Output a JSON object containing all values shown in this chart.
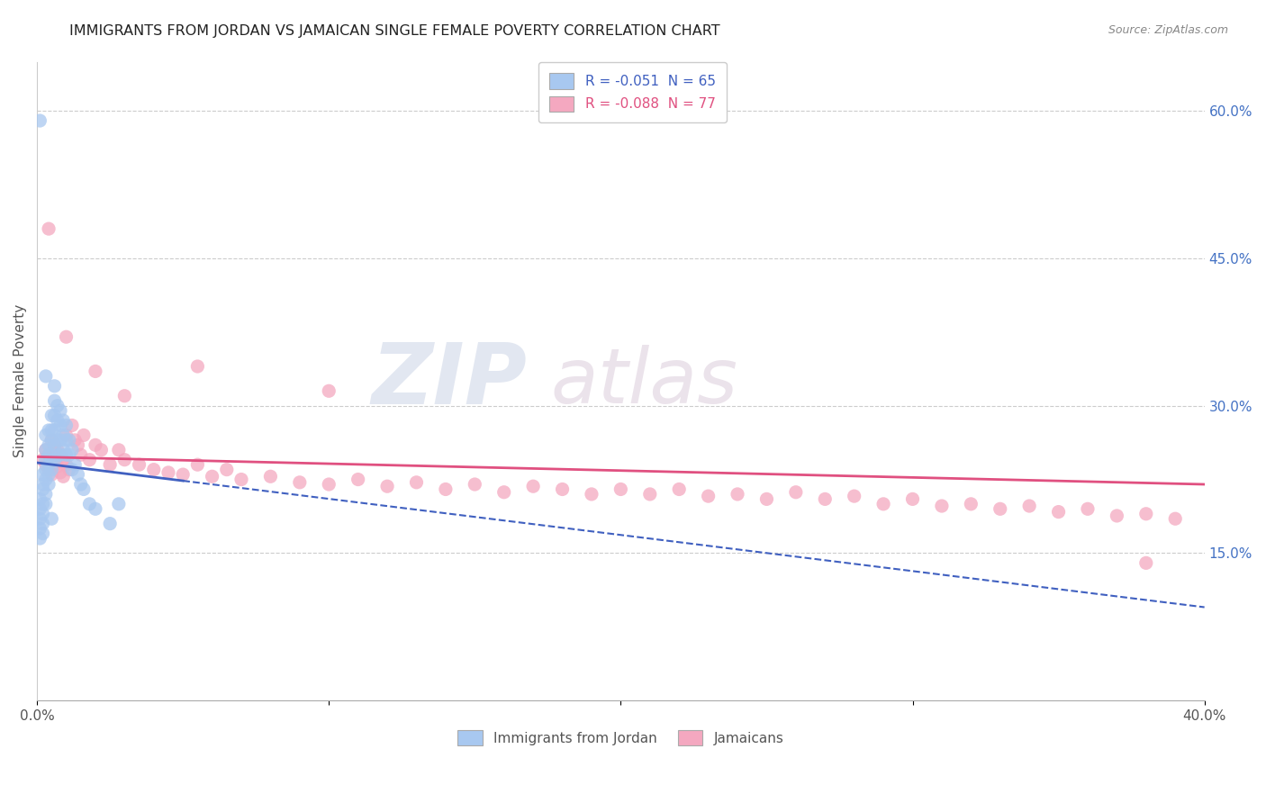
{
  "title": "IMMIGRANTS FROM JORDAN VS JAMAICAN SINGLE FEMALE POVERTY CORRELATION CHART",
  "source": "Source: ZipAtlas.com",
  "ylabel": "Single Female Poverty",
  "right_yticks": [
    "60.0%",
    "45.0%",
    "30.0%",
    "15.0%"
  ],
  "right_ytick_vals": [
    0.6,
    0.45,
    0.3,
    0.15
  ],
  "legend_r1": "R = -0.051  N = 65",
  "legend_r2": "R = -0.088  N = 77",
  "legend_label1": "Immigrants from Jordan",
  "legend_label2": "Jamaicans",
  "color_blue": "#a8c8f0",
  "color_pink": "#f4a8c0",
  "color_blue_line": "#4060c0",
  "color_pink_line": "#e05080",
  "watermark_zip": "ZIP",
  "watermark_atlas": "atlas",
  "xlim": [
    0.0,
    0.4
  ],
  "ylim": [
    0.0,
    0.65
  ],
  "blue_trendline": [
    0.0,
    0.4,
    0.242,
    0.095
  ],
  "pink_trendline": [
    0.0,
    0.4,
    0.248,
    0.22
  ],
  "blue_scatter_x": [
    0.001,
    0.001,
    0.001,
    0.001,
    0.001,
    0.002,
    0.002,
    0.002,
    0.002,
    0.002,
    0.002,
    0.002,
    0.003,
    0.003,
    0.003,
    0.003,
    0.003,
    0.003,
    0.003,
    0.004,
    0.004,
    0.004,
    0.004,
    0.004,
    0.004,
    0.005,
    0.005,
    0.005,
    0.005,
    0.005,
    0.006,
    0.006,
    0.006,
    0.006,
    0.006,
    0.007,
    0.007,
    0.007,
    0.007,
    0.008,
    0.008,
    0.008,
    0.008,
    0.009,
    0.009,
    0.009,
    0.01,
    0.01,
    0.01,
    0.011,
    0.011,
    0.012,
    0.012,
    0.013,
    0.014,
    0.015,
    0.016,
    0.018,
    0.02,
    0.025,
    0.001,
    0.003,
    0.006,
    0.028,
    0.005
  ],
  "blue_scatter_y": [
    0.205,
    0.195,
    0.185,
    0.175,
    0.165,
    0.23,
    0.22,
    0.215,
    0.2,
    0.19,
    0.18,
    0.17,
    0.27,
    0.255,
    0.245,
    0.235,
    0.225,
    0.21,
    0.2,
    0.275,
    0.26,
    0.25,
    0.24,
    0.23,
    0.22,
    0.29,
    0.275,
    0.265,
    0.245,
    0.235,
    0.305,
    0.29,
    0.275,
    0.26,
    0.245,
    0.3,
    0.285,
    0.265,
    0.25,
    0.295,
    0.28,
    0.265,
    0.25,
    0.285,
    0.27,
    0.255,
    0.28,
    0.265,
    0.25,
    0.265,
    0.25,
    0.255,
    0.235,
    0.24,
    0.23,
    0.22,
    0.215,
    0.2,
    0.195,
    0.18,
    0.59,
    0.33,
    0.32,
    0.2,
    0.185
  ],
  "pink_scatter_x": [
    0.002,
    0.003,
    0.003,
    0.004,
    0.004,
    0.005,
    0.005,
    0.005,
    0.006,
    0.006,
    0.007,
    0.007,
    0.008,
    0.008,
    0.009,
    0.009,
    0.01,
    0.01,
    0.011,
    0.012,
    0.013,
    0.014,
    0.015,
    0.016,
    0.018,
    0.02,
    0.022,
    0.025,
    0.028,
    0.03,
    0.035,
    0.04,
    0.045,
    0.05,
    0.055,
    0.06,
    0.065,
    0.07,
    0.08,
    0.09,
    0.1,
    0.11,
    0.12,
    0.13,
    0.14,
    0.15,
    0.16,
    0.17,
    0.18,
    0.19,
    0.2,
    0.21,
    0.22,
    0.23,
    0.24,
    0.25,
    0.26,
    0.27,
    0.28,
    0.29,
    0.3,
    0.31,
    0.32,
    0.33,
    0.34,
    0.35,
    0.36,
    0.37,
    0.38,
    0.39,
    0.004,
    0.01,
    0.02,
    0.03,
    0.055,
    0.1,
    0.38
  ],
  "pink_scatter_y": [
    0.245,
    0.255,
    0.24,
    0.25,
    0.235,
    0.265,
    0.245,
    0.23,
    0.26,
    0.24,
    0.255,
    0.238,
    0.25,
    0.232,
    0.245,
    0.228,
    0.24,
    0.27,
    0.235,
    0.28,
    0.265,
    0.26,
    0.25,
    0.27,
    0.245,
    0.26,
    0.255,
    0.24,
    0.255,
    0.245,
    0.24,
    0.235,
    0.232,
    0.23,
    0.24,
    0.228,
    0.235,
    0.225,
    0.228,
    0.222,
    0.22,
    0.225,
    0.218,
    0.222,
    0.215,
    0.22,
    0.212,
    0.218,
    0.215,
    0.21,
    0.215,
    0.21,
    0.215,
    0.208,
    0.21,
    0.205,
    0.212,
    0.205,
    0.208,
    0.2,
    0.205,
    0.198,
    0.2,
    0.195,
    0.198,
    0.192,
    0.195,
    0.188,
    0.19,
    0.185,
    0.48,
    0.37,
    0.335,
    0.31,
    0.34,
    0.315,
    0.14
  ]
}
